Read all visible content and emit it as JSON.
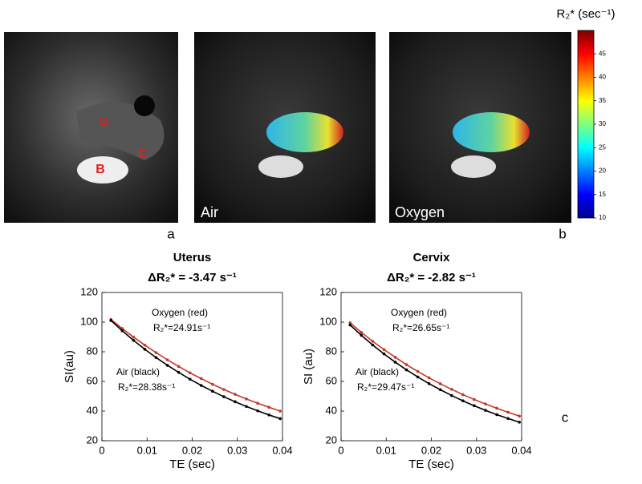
{
  "chart_data": [
    {
      "type": "line",
      "title": "Uterus",
      "subtitle": "ΔR₂* = -3.47 s⁻¹",
      "x_label": "TE (sec)",
      "y_label": "SI(au)",
      "x": [
        0.002,
        0.0045,
        0.007,
        0.0095,
        0.012,
        0.0145,
        0.017,
        0.0195,
        0.022,
        0.0245,
        0.027,
        0.0295,
        0.032,
        0.0345,
        0.037,
        0.0395
      ],
      "xlim": [
        0,
        0.04
      ],
      "xticks": [
        0,
        0.01,
        0.02,
        0.03,
        0.04
      ],
      "ylim": [
        20,
        120
      ],
      "yticks": [
        20,
        40,
        60,
        80,
        100,
        120
      ],
      "series": [
        {
          "name": "Oxygen (red)",
          "annotation": "R₂*=24.91s⁻¹",
          "color": "#c0392b",
          "values": [
            101.8,
            95.7,
            89.9,
            84.5,
            79.4,
            74.6,
            70.1,
            65.8,
            61.9,
            58.1,
            54.6,
            51.3,
            48.2,
            45.3,
            42.6,
            40.0
          ]
        },
        {
          "name": "Air (black)",
          "annotation": "R₂*=28.38s⁻¹",
          "color": "#000000",
          "values": [
            101.1,
            94.2,
            87.7,
            81.7,
            76.1,
            70.9,
            66.1,
            61.5,
            57.3,
            53.4,
            49.7,
            46.3,
            43.1,
            40.2,
            37.4,
            34.9
          ]
        }
      ]
    },
    {
      "type": "line",
      "title": "Cervix",
      "subtitle": "ΔR₂* = -2.82 s⁻¹",
      "x_label": "TE (sec)",
      "y_label": "SI (au)",
      "x": [
        0.002,
        0.0045,
        0.007,
        0.0095,
        0.012,
        0.0145,
        0.017,
        0.0195,
        0.022,
        0.0245,
        0.027,
        0.0295,
        0.032,
        0.0345,
        0.037,
        0.0395
      ],
      "xlim": [
        0,
        0.04
      ],
      "xticks": [
        0,
        0.01,
        0.02,
        0.03,
        0.04
      ],
      "ylim": [
        20,
        120
      ],
      "yticks": [
        20,
        40,
        60,
        80,
        100,
        120
      ],
      "series": [
        {
          "name": "Oxygen (red)",
          "annotation": "R₂*=26.65s⁻¹",
          "color": "#c0392b",
          "values": [
            99.6,
            93.1,
            87.1,
            81.5,
            76.3,
            71.3,
            66.7,
            62.4,
            58.4,
            54.7,
            51.1,
            47.8,
            44.8,
            41.9,
            39.2,
            36.6
          ]
        },
        {
          "name": "Air (black)",
          "annotation": "R₂*=29.47s⁻¹",
          "color": "#000000",
          "values": [
            98.1,
            91.1,
            84.6,
            78.6,
            73.0,
            67.8,
            63.0,
            58.5,
            54.4,
            50.5,
            46.9,
            43.6,
            40.5,
            37.6,
            35.0,
            32.5
          ]
        }
      ]
    }
  ],
  "anatomy_labels": [
    "U",
    "B",
    "C"
  ],
  "image_labels": [
    "Air",
    "Oxygen"
  ],
  "panel_labels": [
    "a",
    "b",
    "c"
  ],
  "colorbar": {
    "title": "R₂* (sec⁻¹)",
    "lim": [
      10,
      50
    ],
    "ticks": [
      10,
      15,
      20,
      25,
      30,
      35,
      40,
      45
    ]
  }
}
